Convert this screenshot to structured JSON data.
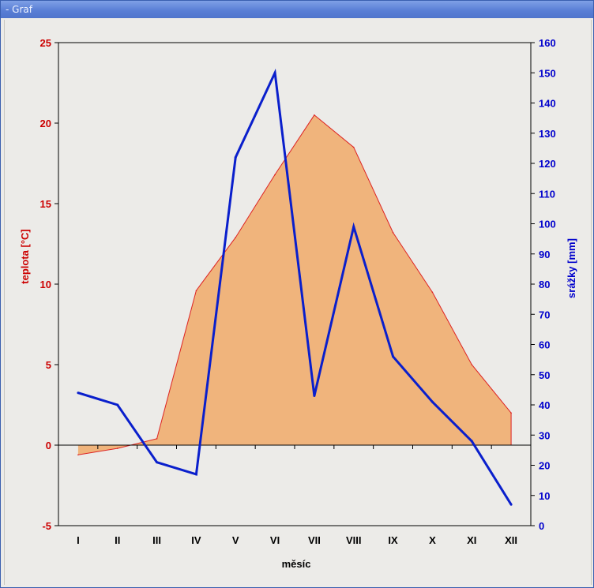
{
  "window": {
    "title": "- Graf"
  },
  "colors": {
    "temp_fill": "#f0b47c",
    "temp_line": "#dd2222",
    "precip_line": "#0a1fcc",
    "left_axis": "#cc0000",
    "right_axis": "#0000cc"
  },
  "chart_data": {
    "type": "area+line",
    "categories": [
      "I",
      "II",
      "III",
      "IV",
      "V",
      "VI",
      "VII",
      "VIII",
      "IX",
      "X",
      "XI",
      "XII"
    ],
    "series": [
      {
        "name": "teplota",
        "axis": "left",
        "kind": "area",
        "values": [
          -0.6,
          -0.2,
          0.4,
          9.6,
          12.9,
          16.8,
          20.5,
          18.5,
          13.2,
          9.5,
          5.0,
          2.0
        ]
      },
      {
        "name": "srážky",
        "axis": "right",
        "kind": "line",
        "values": [
          44,
          40,
          21,
          17,
          122,
          150,
          43,
          99,
          56,
          41,
          28,
          7
        ]
      }
    ],
    "xlabel": "měsíc",
    "ylabel_left": "teplota [°C]",
    "ylabel_right": "srážky [mm]",
    "ylim_left": [
      -5,
      25
    ],
    "yticks_left": [
      "-5",
      "0",
      "5",
      "10",
      "15",
      "20",
      "25"
    ],
    "ylim_right": [
      0,
      160
    ],
    "yticks_right": [
      "0",
      "10",
      "20",
      "30",
      "40",
      "50",
      "60",
      "70",
      "80",
      "90",
      "100",
      "110",
      "120",
      "130",
      "140",
      "150",
      "160"
    ],
    "grid": false,
    "legend": "none"
  }
}
